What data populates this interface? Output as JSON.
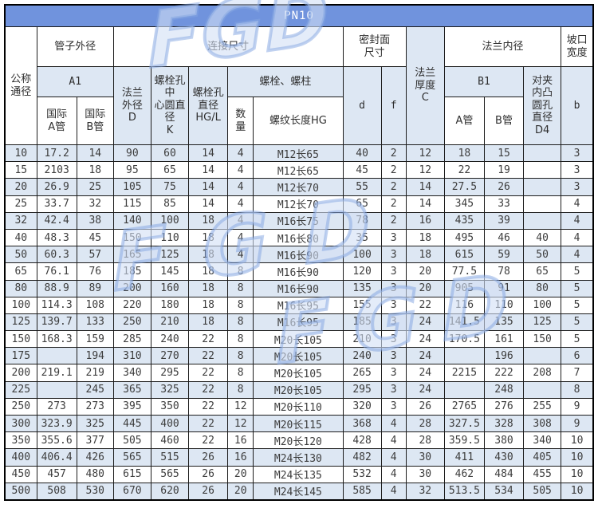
{
  "title": "PN10",
  "watermark": {
    "text": "FGD"
  },
  "colors": {
    "banner_blue": "#7093dd",
    "row_alt_blue": "#dde7f3",
    "border": "#1c1c1c",
    "text": "#3d3d3d",
    "banner_text": "#ffffff"
  },
  "header": {
    "nominal": "公称\n通径",
    "pipe_od": "管子外径",
    "a1": "A1",
    "intl_a": "国际\nA管",
    "intl_b": "国际\nB管",
    "connection": "连接尺寸",
    "flange_od": "法兰\n外径\nD",
    "bolt_circle": "螺栓孔\n中\n心圆直\n径\nK",
    "bolt_hole": "螺栓孔\n直径\nHG/L",
    "bolts": "螺栓、螺柱",
    "qty": "数\n量",
    "thread_len": "螺纹长度HG",
    "seal_face": "密封面\n尺寸",
    "d": "d",
    "f": "f",
    "thickness": "法兰\n厚度\nC",
    "flange_id": "法兰内径",
    "b1": "B1",
    "a_pipe": "A管",
    "b_pipe": "B管",
    "d4": "对夹\n内凸\n圆孔\n直径\nD4",
    "groove": "坡口\n宽度",
    "b": "b"
  },
  "columns": [
    "公称通径",
    "国际A管",
    "国际B管",
    "法兰外径D",
    "螺栓孔中心圆直径K",
    "螺栓孔直径HG/L",
    "数量",
    "螺纹长度HG",
    "d",
    "f",
    "法兰厚度C",
    "B1 A管",
    "B1 B管",
    "对夹内凸圆孔直径D4",
    "b"
  ],
  "rows": [
    [
      "10",
      "17.2",
      "14",
      "90",
      "60",
      "14",
      "4",
      "M12长65",
      "40",
      "2",
      "12",
      "18",
      "15",
      "",
      "3"
    ],
    [
      "15",
      "2103",
      "18",
      "95",
      "65",
      "14",
      "4",
      "M12长65",
      "45",
      "2",
      "12",
      "22",
      "19",
      "",
      "3"
    ],
    [
      "20",
      "26.9",
      "25",
      "105",
      "75",
      "14",
      "4",
      "M12长70",
      "55",
      "2",
      "14",
      "27.5",
      "26",
      "",
      "3"
    ],
    [
      "25",
      "33.7",
      "32",
      "115",
      "85",
      "14",
      "4",
      "M12长70",
      "65",
      "2",
      "14",
      "345",
      "33",
      "",
      "4"
    ],
    [
      "32",
      "42.4",
      "38",
      "140",
      "100",
      "18",
      "4",
      "M16长75",
      "78",
      "2",
      "16",
      "435",
      "39",
      "",
      "4"
    ],
    [
      "40",
      "48.3",
      "45",
      "150",
      "110",
      "18",
      "4",
      "M16长80",
      "35",
      "3",
      "18",
      "495",
      "46",
      "40",
      "4"
    ],
    [
      "50",
      "60.3",
      "57",
      "165",
      "125",
      "18",
      "4",
      "M16长90",
      "100",
      "3",
      "18",
      "615",
      "59",
      "50",
      "4"
    ],
    [
      "65",
      "76.1",
      "76",
      "185",
      "145",
      "18",
      "8",
      "M16长90",
      "120",
      "3",
      "20",
      "77.5",
      "78",
      "65",
      "5"
    ],
    [
      "80",
      "88.9",
      "89",
      "200",
      "160",
      "18",
      "8",
      "M16长90",
      "135",
      "3",
      "20",
      "905",
      "91",
      "80",
      "5"
    ],
    [
      "100",
      "114.3",
      "108",
      "220",
      "180",
      "18",
      "8",
      "M16长95",
      "155",
      "3",
      "22",
      "116",
      "110",
      "100",
      "5"
    ],
    [
      "125",
      "139.7",
      "133",
      "250",
      "210",
      "18",
      "8",
      "M16长95",
      "185",
      "3",
      "24",
      "141.5",
      "135",
      "125",
      "5"
    ],
    [
      "150",
      "168.3",
      "159",
      "285",
      "240",
      "22",
      "8",
      "M20长105",
      "210",
      "3",
      "24",
      "170.5",
      "161",
      "150",
      "5"
    ],
    [
      "175",
      "",
      "194",
      "310",
      "270",
      "22",
      "8",
      "M20长105",
      "240",
      "3",
      "24",
      "",
      "196",
      "",
      "6"
    ],
    [
      "200",
      "219.1",
      "219",
      "340",
      "295",
      "22",
      "8",
      "M20长105",
      "265",
      "3",
      "24",
      "2215",
      "222",
      "208",
      "7"
    ],
    [
      "225",
      "",
      "245",
      "365",
      "325",
      "22",
      "8",
      "M20长105",
      "295",
      "3",
      "24",
      "",
      "248",
      "",
      "8"
    ],
    [
      "250",
      "273",
      "273",
      "395",
      "350",
      "22",
      "12",
      "M20长110",
      "320",
      "3",
      "26",
      "2765",
      "276",
      "255",
      "9"
    ],
    [
      "300",
      "323.9",
      "325",
      "445",
      "400",
      "22",
      "12",
      "M20长115",
      "368",
      "4",
      "28",
      "327.5",
      "328",
      "308",
      "9"
    ],
    [
      "350",
      "355.6",
      "377",
      "505",
      "460",
      "22",
      "16",
      "M20长120",
      "428",
      "4",
      "28",
      "359.5",
      "380",
      "340",
      "10"
    ],
    [
      "400",
      "406.4",
      "426",
      "565",
      "515",
      "26",
      "16",
      "M24长130",
      "482",
      "4",
      "30",
      "411",
      "430",
      "405",
      "10"
    ],
    [
      "450",
      "457",
      "480",
      "615",
      "565",
      "26",
      "20",
      "M24长135",
      "532",
      "4",
      "30",
      "462",
      "484",
      "455",
      "10"
    ],
    [
      "500",
      "508",
      "530",
      "670",
      "620",
      "26",
      "20",
      "M24长145",
      "585",
      "4",
      "32",
      "513.5",
      "534",
      "505",
      "10"
    ]
  ]
}
